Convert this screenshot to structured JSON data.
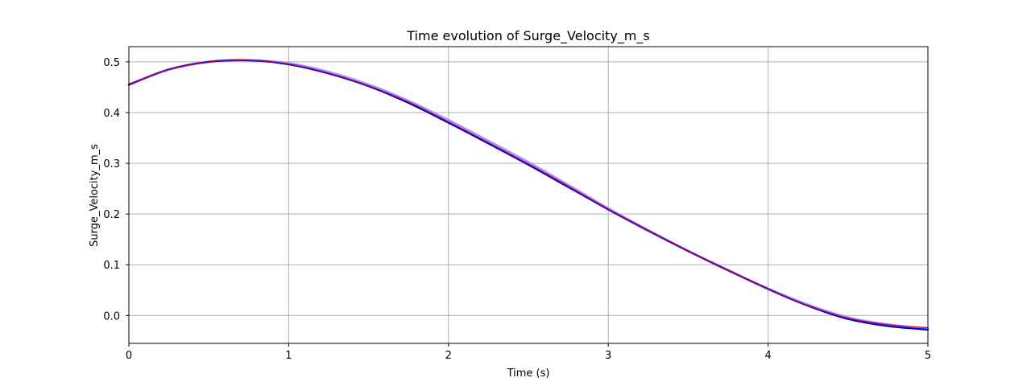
{
  "chart_data": {
    "type": "line",
    "title": "Time evolution of Surge_Velocity_m_s",
    "xlabel": "Time (s)",
    "ylabel": "Surge_Velocity_m_s",
    "xlim": [
      0,
      5
    ],
    "ylim": [
      -0.055,
      0.53
    ],
    "xticks": [
      0,
      1,
      2,
      3,
      4,
      5
    ],
    "yticks": [
      0.0,
      0.1,
      0.2,
      0.3,
      0.4,
      0.5
    ],
    "ytick_labels": [
      "0.0",
      "0.1",
      "0.2",
      "0.3",
      "0.4",
      "0.5"
    ],
    "grid": true,
    "series": [
      {
        "color": "#9999ff",
        "width": 3,
        "x": [
          0,
          0.25,
          0.5,
          0.75,
          1.0,
          1.25,
          1.5,
          1.75,
          2.0,
          2.25,
          2.5,
          2.75,
          3.0,
          3.25,
          3.5,
          3.75,
          4.0,
          4.25,
          4.5,
          4.75,
          5.0
        ],
        "y": [
          0.455,
          0.485,
          0.5,
          0.503,
          0.497,
          0.48,
          0.455,
          0.423,
          0.385,
          0.344,
          0.302,
          0.257,
          0.211,
          0.168,
          0.127,
          0.089,
          0.053,
          0.021,
          -0.004,
          -0.018,
          -0.026
        ]
      },
      {
        "color": "#0000cc",
        "width": 2.2,
        "x": [
          0,
          0.25,
          0.5,
          0.75,
          1.0,
          1.25,
          1.5,
          1.75,
          2.0,
          2.25,
          2.5,
          2.75,
          3.0,
          3.25,
          3.5,
          3.75,
          4.0,
          4.25,
          4.5,
          4.75,
          5.0
        ],
        "y": [
          0.455,
          0.485,
          0.5,
          0.503,
          0.495,
          0.477,
          0.452,
          0.419,
          0.38,
          0.339,
          0.297,
          0.253,
          0.209,
          0.167,
          0.127,
          0.089,
          0.052,
          0.019,
          -0.007,
          -0.021,
          -0.028
        ]
      },
      {
        "color": "#cc0044",
        "width": 1.2,
        "x": [
          0,
          0.25,
          0.5,
          0.75,
          1.0,
          1.25,
          1.5,
          1.75,
          2.0,
          2.25,
          2.5,
          2.75,
          3.0,
          3.25,
          3.5,
          3.75,
          4.0,
          4.25,
          4.5,
          4.75,
          5.0
        ],
        "y": [
          0.455,
          0.485,
          0.5,
          0.503,
          0.496,
          0.478,
          0.453,
          0.421,
          0.382,
          0.341,
          0.299,
          0.255,
          0.21,
          0.167,
          0.127,
          0.089,
          0.052,
          0.02,
          -0.005,
          -0.018,
          -0.024
        ]
      }
    ]
  }
}
